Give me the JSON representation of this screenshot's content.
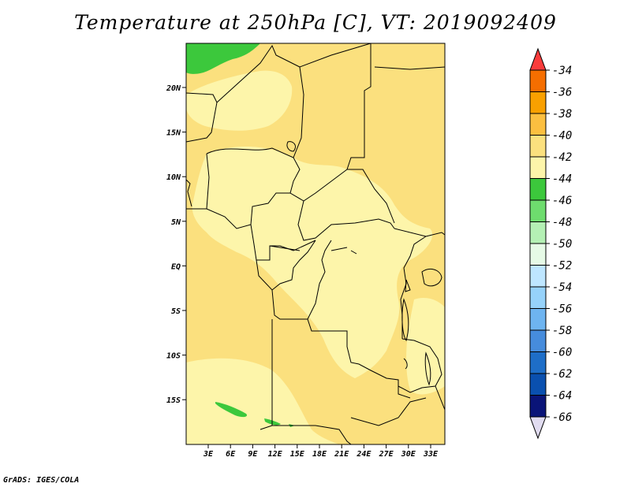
{
  "title": "Temperature at 250hPa [C], VT: 2019092409",
  "credit": "GrADS: IGES/COLA",
  "map": {
    "lon_ticks": [
      "3E",
      "6E",
      "9E",
      "12E",
      "15E",
      "18E",
      "21E",
      "24E",
      "27E",
      "30E",
      "33E"
    ],
    "lat_ticks": [
      "20N",
      "15N",
      "10N",
      "5N",
      "EQ",
      "5S",
      "10S",
      "15S"
    ],
    "fill_colors": {
      "warm": "#fbe07e",
      "cool": "#fdf5aa",
      "green": "#3cc83c"
    }
  },
  "colorbar": {
    "labels": [
      "-34",
      "-36",
      "-38",
      "-40",
      "-42",
      "-44",
      "-46",
      "-48",
      "-50",
      "-52",
      "-54",
      "-56",
      "-58",
      "-60",
      "-62",
      "-64",
      "-66"
    ],
    "colors": [
      "#fa3c3c",
      "#f56e00",
      "#f9a000",
      "#fbbf40",
      "#fbe07e",
      "#fdf5aa",
      "#3cc83c",
      "#6edc6e",
      "#b4f0b4",
      "#e6fae6",
      "#bee6ff",
      "#96d2fa",
      "#6eb4f0",
      "#468cdc",
      "#1e6ec8",
      "#0a50af",
      "#0a1478",
      "#e1dcf0"
    ]
  }
}
